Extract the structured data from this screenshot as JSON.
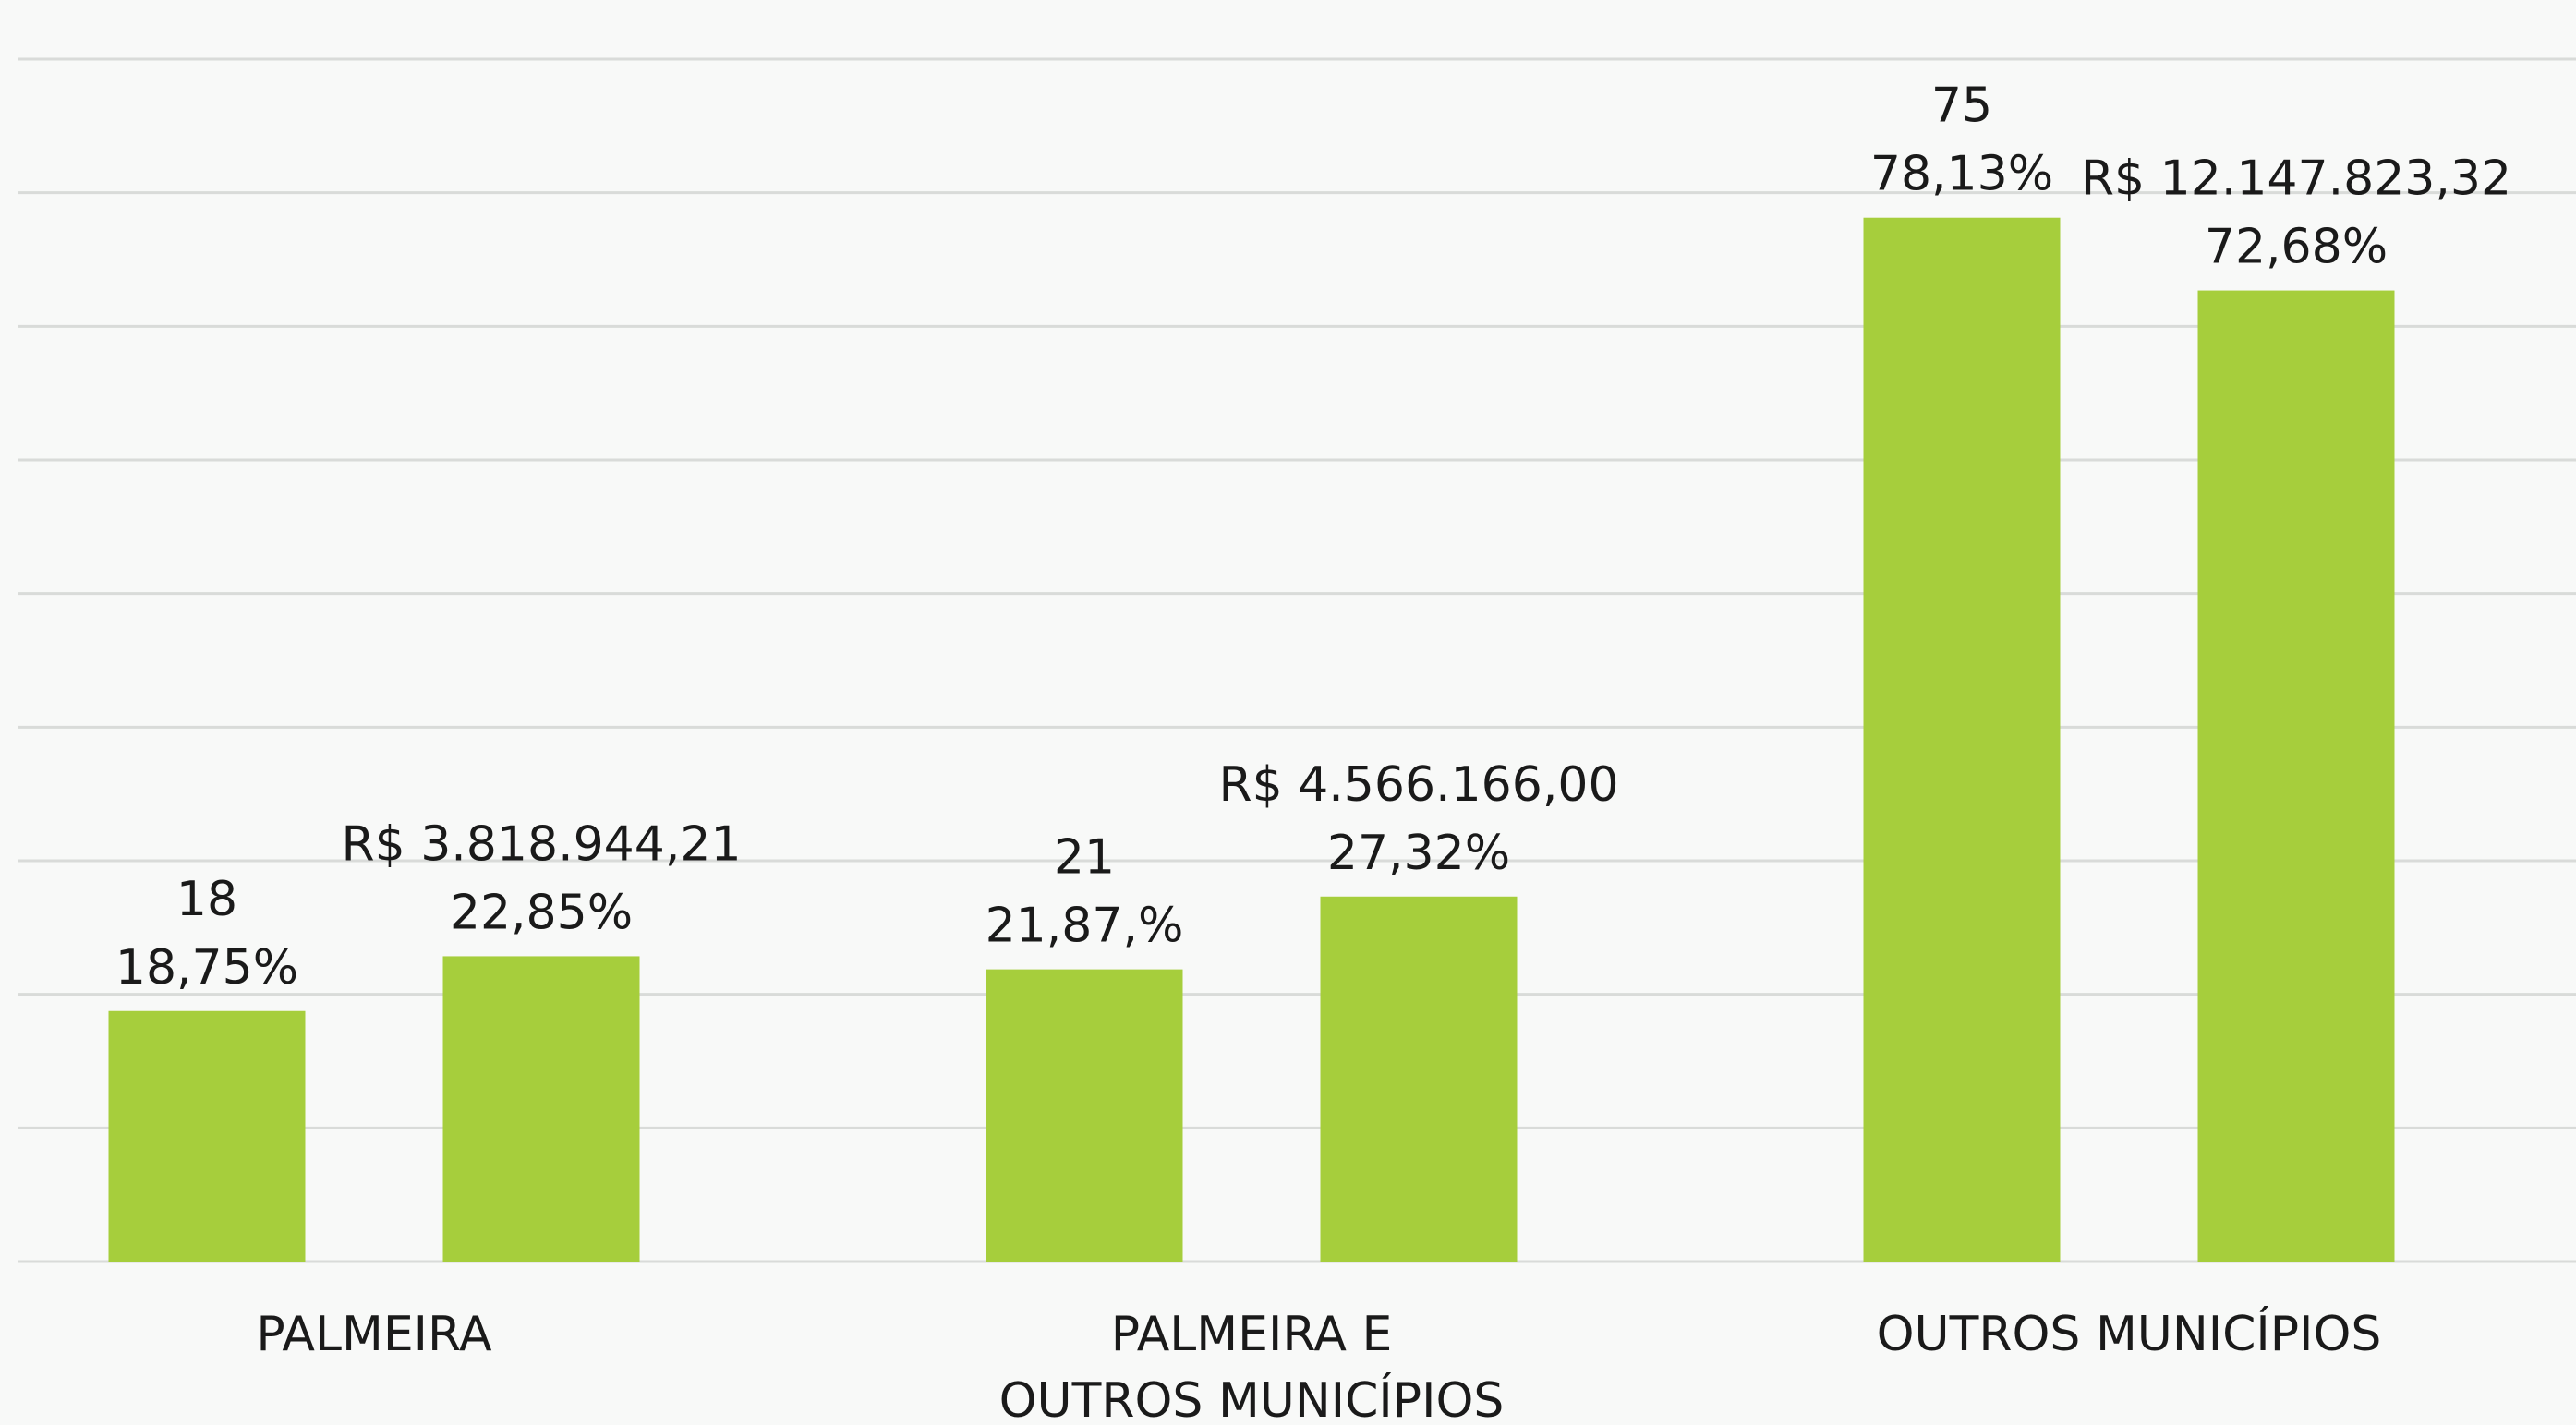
{
  "chart_data": {
    "type": "bar",
    "categories": [
      "PALMEIRA",
      "PALMEIRA E\nOUTROS MUNICÍPIOS",
      "OUTROS MUNICÍPIOS"
    ],
    "series": [
      {
        "color": "#a6ce3c",
        "values": [
          18.75,
          21.87,
          78.13
        ],
        "value_labels": [
          [
            "18",
            "18,75%"
          ],
          [
            "21",
            "21,87,%"
          ],
          [
            "75",
            "78,13%"
          ]
        ]
      },
      {
        "color": "#a6ce3c",
        "values": [
          22.85,
          27.32,
          72.68
        ],
        "value_labels": [
          [
            "R$ 3.818.944,21",
            "22,85%"
          ],
          [
            "R$ 4.566.166,00",
            "27,32%"
          ],
          [
            "R$ 12.147.823,32",
            "72,68%"
          ]
        ]
      }
    ],
    "ylim": [
      0,
      90
    ],
    "yticks": [
      0,
      10,
      20,
      30,
      40,
      50,
      60,
      70,
      80,
      90
    ],
    "grid": true
  }
}
